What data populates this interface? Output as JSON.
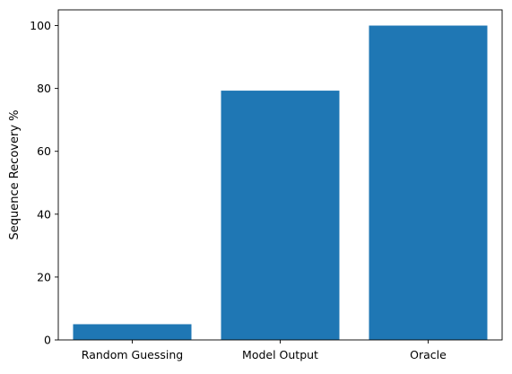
{
  "chart_data": {
    "type": "bar",
    "title": "",
    "xlabel": "",
    "ylabel": "Sequence Recovery %",
    "categories": [
      "Random Guessing",
      "Model Output",
      "Oracle"
    ],
    "values": [
      5.0,
      79.3,
      100.0
    ],
    "ylim": [
      0,
      105
    ],
    "yticks": [
      0,
      20,
      40,
      60,
      80,
      100
    ],
    "grid": false,
    "bar_color": "#1f77b4"
  }
}
